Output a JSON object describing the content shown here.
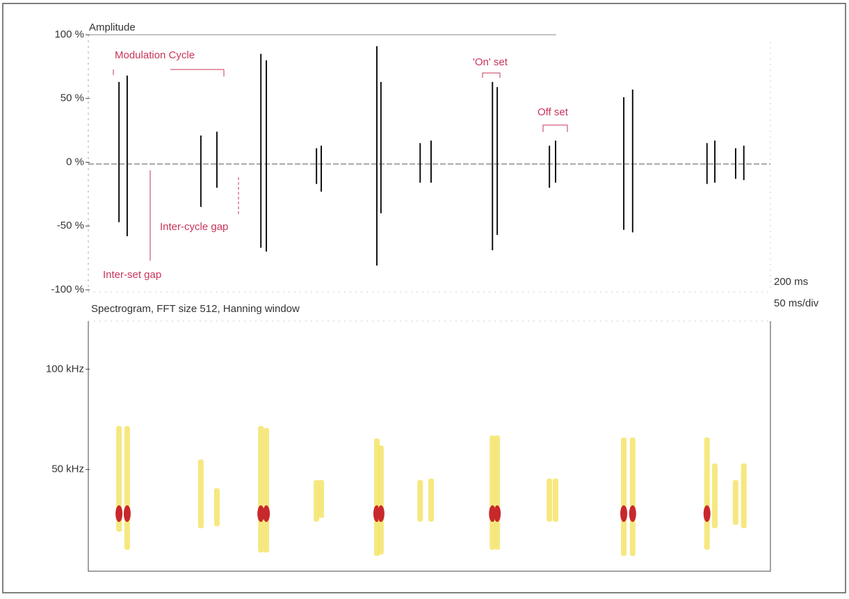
{
  "chart_data": [
    {
      "type": "waveform",
      "title": "Amplitude",
      "x": [
        9.0,
        11.4,
        33.0,
        37.7,
        50.6,
        52.2,
        66.9,
        68.3,
        84.6,
        85.8,
        97.3,
        100.5,
        118.5,
        119.9,
        135.2,
        137.0,
        157.0,
        159.6,
        181.4,
        183.7,
        189.8,
        192.2
      ],
      "series": [
        {
          "color": "#111111",
          "values": [
            63,
            68,
            21,
            24,
            85,
            80,
            11,
            13,
            91,
            63,
            15,
            17,
            63,
            59,
            13,
            17,
            51,
            57,
            15,
            17,
            11,
            13
          ]
        },
        {
          "color": "#111111",
          "values": [
            -47,
            -58,
            -35,
            -20,
            -67,
            -70,
            -17,
            -23,
            -81,
            -40,
            -16,
            -16,
            -69,
            -57,
            -20,
            -16,
            -53,
            -55,
            -17,
            -16,
            -13,
            -14
          ]
        }
      ],
      "xlim": [
        0,
        200
      ],
      "ylim": [
        -100,
        100
      ],
      "yticks": [
        {
          "value": 100,
          "label": "100 %"
        },
        {
          "value": 50,
          "label": "50 %"
        },
        {
          "value": 0,
          "label": "0 %"
        },
        {
          "value": -50,
          "label": "-50 %"
        },
        {
          "value": -100,
          "label": "-100 %"
        }
      ],
      "x_scale_label": "200 ms",
      "x_division_label": "50 ms/div",
      "annotations": [
        "Modulation Cycle",
        "'On' set",
        "Off set",
        "Inter-cycle gap",
        "Inter-set gap"
      ],
      "annotation_color": "#c8345a"
    },
    {
      "type": "spectrogram",
      "title": "Spectrogram, FFT size 512, Hanning window",
      "x": [
        9.0,
        11.4,
        33.0,
        37.7,
        50.6,
        52.2,
        66.9,
        68.3,
        84.6,
        85.8,
        97.3,
        100.5,
        118.5,
        119.9,
        135.2,
        137.0,
        157.0,
        159.6,
        181.4,
        183.7,
        189.8,
        192.2
      ],
      "series": [
        {
          "color": "#f4e46a",
          "values": [
            71.7,
            71.7,
            55,
            40.7,
            71.7,
            70.7,
            44.8,
            44.8,
            65.5,
            62,
            44.8,
            45.5,
            67,
            67,
            45.5,
            45.5,
            66,
            66,
            66,
            53,
            44.8,
            53
          ]
        },
        {
          "color": "#f4e46a",
          "values": [
            19,
            10,
            20.7,
            21.7,
            8.6,
            8.6,
            24,
            25.9,
            6.9,
            7.6,
            24,
            24,
            10,
            10,
            24,
            24,
            6.9,
            6.9,
            10,
            20.7,
            22.4,
            20.7
          ]
        },
        {
          "color": "#c8282c",
          "values": [
            28,
            28,
            null,
            null,
            28,
            28,
            null,
            null,
            28,
            28,
            null,
            null,
            28,
            28,
            null,
            null,
            28,
            28,
            28,
            null,
            null,
            null
          ]
        }
      ],
      "xlim": [
        0,
        200
      ],
      "ylim": [
        0,
        124
      ],
      "yticks": [
        {
          "value": 100,
          "label": "100 kHz"
        },
        {
          "value": 50,
          "label": "50 kHz"
        }
      ]
    }
  ]
}
